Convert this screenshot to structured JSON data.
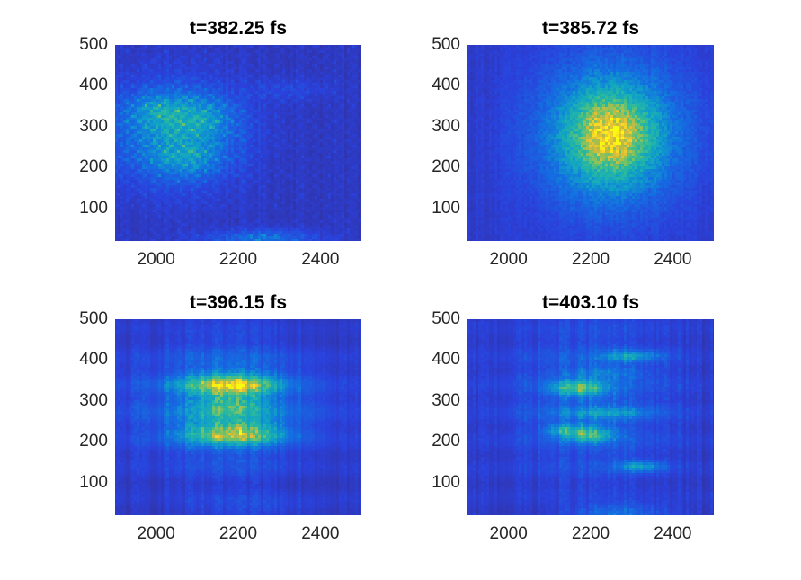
{
  "chart_data": [
    {
      "type": "heatmap",
      "title": "t=382.25 fs",
      "xlim": [
        1900,
        2500
      ],
      "ylim": [
        20,
        500
      ],
      "xticks": [
        2000,
        2200,
        2400
      ],
      "yticks": [
        100,
        200,
        300,
        400,
        500
      ],
      "colormap": "parula",
      "grid": false,
      "pattern": "speckled",
      "blobs": [
        {
          "x": 2040,
          "y": 280,
          "sx": 110,
          "sy": 85,
          "amp": 0.32
        },
        {
          "x": 2110,
          "y": 320,
          "sx": 60,
          "sy": 40,
          "amp": 0.22
        },
        {
          "x": 2000,
          "y": 340,
          "sx": 50,
          "sy": 30,
          "amp": 0.2
        },
        {
          "x": 2080,
          "y": 220,
          "sx": 60,
          "sy": 30,
          "amp": 0.18
        },
        {
          "x": 2260,
          "y": 25,
          "sx": 90,
          "sy": 15,
          "amp": 0.25
        },
        {
          "x": 2330,
          "y": 390,
          "sx": 70,
          "sy": 20,
          "amp": 0.08
        }
      ]
    },
    {
      "type": "heatmap",
      "title": "t=385.72 fs",
      "xlim": [
        1900,
        2500
      ],
      "ylim": [
        20,
        500
      ],
      "xticks": [
        2000,
        2200,
        2400
      ],
      "yticks": [
        100,
        200,
        300,
        400,
        500
      ],
      "colormap": "parula",
      "grid": false,
      "pattern": "smooth",
      "blobs": [
        {
          "x": 2250,
          "y": 280,
          "sx": 120,
          "sy": 120,
          "amp": 0.45
        },
        {
          "x": 2250,
          "y": 280,
          "sx": 60,
          "sy": 60,
          "amp": 0.4
        }
      ]
    },
    {
      "type": "heatmap",
      "title": "t=396.15 fs",
      "xlim": [
        1900,
        2500
      ],
      "ylim": [
        20,
        500
      ],
      "xticks": [
        2000,
        2200,
        2400
      ],
      "yticks": [
        100,
        200,
        300,
        400,
        500
      ],
      "colormap": "parula",
      "grid": false,
      "pattern": "streaky",
      "blobs": [
        {
          "x": 2180,
          "y": 290,
          "sx": 150,
          "sy": 95,
          "amp": 0.32
        },
        {
          "x": 2180,
          "y": 340,
          "sx": 75,
          "sy": 18,
          "amp": 0.5
        },
        {
          "x": 2190,
          "y": 222,
          "sx": 80,
          "sy": 18,
          "amp": 0.55
        },
        {
          "x": 2180,
          "y": 290,
          "sx": 55,
          "sy": 25,
          "amp": 0.25
        },
        {
          "x": 2250,
          "y": 40,
          "sx": 120,
          "sy": 20,
          "amp": 0.08
        }
      ]
    },
    {
      "type": "heatmap",
      "title": "t=403.10 fs",
      "xlim": [
        1900,
        2500
      ],
      "ylim": [
        20,
        500
      ],
      "xticks": [
        2000,
        2200,
        2400
      ],
      "yticks": [
        100,
        200,
        300,
        400,
        500
      ],
      "colormap": "parula",
      "grid": false,
      "pattern": "streaky",
      "blobs": [
        {
          "x": 2200,
          "y": 300,
          "sx": 140,
          "sy": 140,
          "amp": 0.18
        },
        {
          "x": 2170,
          "y": 330,
          "sx": 45,
          "sy": 14,
          "amp": 0.45
        },
        {
          "x": 2195,
          "y": 220,
          "sx": 40,
          "sy": 14,
          "amp": 0.45
        },
        {
          "x": 2130,
          "y": 230,
          "sx": 30,
          "sy": 10,
          "amp": 0.3
        },
        {
          "x": 2300,
          "y": 410,
          "sx": 50,
          "sy": 10,
          "amp": 0.25
        },
        {
          "x": 2320,
          "y": 140,
          "sx": 40,
          "sy": 10,
          "amp": 0.28
        },
        {
          "x": 2240,
          "y": 270,
          "sx": 80,
          "sy": 10,
          "amp": 0.18
        },
        {
          "x": 2230,
          "y": 370,
          "sx": 70,
          "sy": 10,
          "amp": 0.15
        },
        {
          "x": 2270,
          "y": 25,
          "sx": 80,
          "sy": 15,
          "amp": 0.22
        }
      ]
    }
  ]
}
